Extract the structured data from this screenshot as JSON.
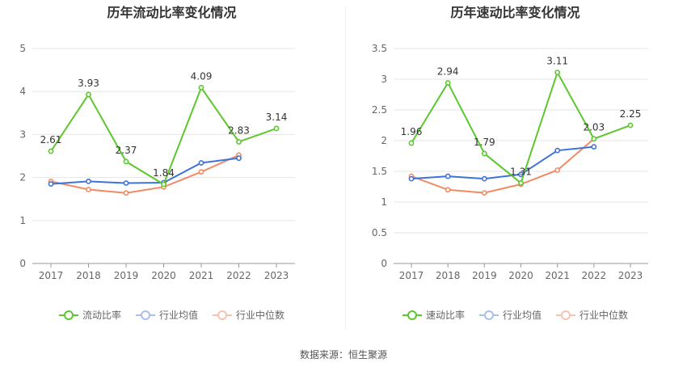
{
  "source_label": "数据来源：恒生聚源",
  "chart_data": [
    {
      "type": "line",
      "title": "历年流动比率变化情况",
      "categories": [
        "2017",
        "2018",
        "2019",
        "2020",
        "2021",
        "2022",
        "2023"
      ],
      "ylim": [
        0,
        5
      ],
      "yticks": [
        0,
        1,
        2,
        3,
        4,
        5
      ],
      "ytick_labels": [
        "0",
        "1",
        "2",
        "3",
        "4",
        "5"
      ],
      "grid": true,
      "legend_position": "bottom",
      "series": [
        {
          "name": "流动比率",
          "color": "#5cc72e",
          "values": [
            2.61,
            3.93,
            2.37,
            1.84,
            4.09,
            2.83,
            3.14
          ],
          "labels": [
            "2.61",
            "3.93",
            "2.37",
            "1.84",
            "4.09",
            "2.83",
            "3.14"
          ]
        },
        {
          "name": "行业均值",
          "color": "#3d72d9",
          "values": [
            1.85,
            1.91,
            1.87,
            1.88,
            2.34,
            2.45,
            null
          ]
        },
        {
          "name": "行业中位数",
          "color": "#f28a63",
          "values": [
            1.91,
            1.72,
            1.64,
            1.78,
            2.13,
            2.52,
            null
          ]
        }
      ]
    },
    {
      "type": "line",
      "title": "历年速动比率变化情况",
      "categories": [
        "2017",
        "2018",
        "2019",
        "2020",
        "2021",
        "2022",
        "2023"
      ],
      "ylim": [
        0,
        3.5
      ],
      "yticks": [
        0,
        0.5,
        1,
        1.5,
        2,
        2.5,
        3,
        3.5
      ],
      "ytick_labels": [
        "0",
        "0.5",
        "1",
        "1.5",
        "2",
        "2.5",
        "3",
        "3.5"
      ],
      "grid": true,
      "legend_position": "bottom",
      "series": [
        {
          "name": "速动比率",
          "color": "#5cc72e",
          "values": [
            1.96,
            2.94,
            1.79,
            1.31,
            3.11,
            2.03,
            2.25
          ],
          "labels": [
            "1.96",
            "2.94",
            "1.79",
            "1.31",
            "3.11",
            "2.03",
            "2.25"
          ]
        },
        {
          "name": "行业均值",
          "color": "#3d72d9",
          "values": [
            1.38,
            1.42,
            1.38,
            1.45,
            1.84,
            1.9,
            null
          ]
        },
        {
          "name": "行业中位数",
          "color": "#f28a63",
          "values": [
            1.42,
            1.2,
            1.15,
            1.29,
            1.52,
            2.03,
            null
          ]
        }
      ]
    }
  ]
}
